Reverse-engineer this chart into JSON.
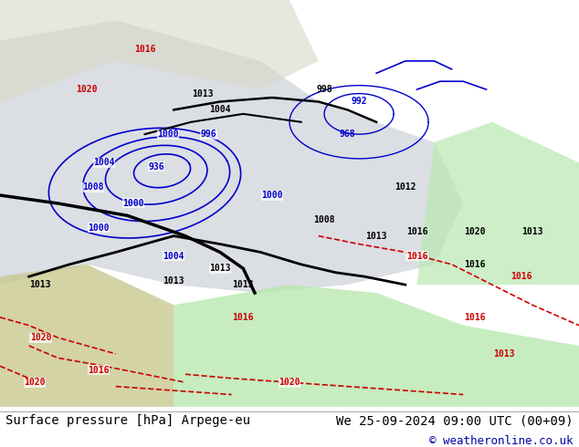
{
  "title_left": "Surface pressure [hPa] Arpege-eu",
  "title_right": "We 25-09-2024 09:00 UTC (00+09)",
  "copyright": "© weatheronline.co.uk",
  "bg_color": "#c8c8a0",
  "sea_color": "#b8bfc8",
  "green_color": "#b8e8b0",
  "polar_color": "#d8d8c8",
  "africa_color": "#c8c890",
  "blue": "#0000cc",
  "red": "#cc0000",
  "black": "#000000",
  "white": "#ffffff",
  "footer_bg": "#ffffff",
  "copyright_color": "#0000aa"
}
